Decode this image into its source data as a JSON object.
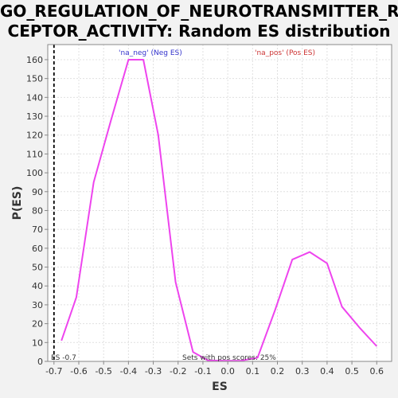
{
  "chart_data": {
    "type": "line",
    "title": "GO_REGULATION_OF_NEUROTRANSMITTER_RECEPTOR_ACTIVITY: Random ES distribution",
    "title_lines": [
      "GO_REGULATION_OF_NEUROTRANSMITTER_RE",
      "CEPTOR_ACTIVITY: Random ES distribution"
    ],
    "xlabel": "ES",
    "ylabel": "P(ES)",
    "xlim": [
      -0.725,
      0.66
    ],
    "ylim": [
      0,
      168
    ],
    "xticks": [
      -0.7,
      -0.6,
      -0.5,
      -0.4,
      -0.3,
      -0.2,
      -0.1,
      0.0,
      0.1,
      0.2,
      0.3,
      0.4,
      0.5,
      0.6
    ],
    "xtick_labels": [
      "-0.7",
      "-0.6",
      "-0.5",
      "-0.4",
      "-0.3",
      "-0.2",
      "-0.1",
      "0.0",
      "0.1",
      "0.2",
      "0.3",
      "0.4",
      "0.5",
      "0.6"
    ],
    "yticks": [
      0,
      10,
      20,
      30,
      40,
      50,
      60,
      70,
      80,
      90,
      100,
      110,
      120,
      130,
      140,
      150,
      160
    ],
    "ytick_labels": [
      "0",
      "10",
      "20",
      "30",
      "40",
      "50",
      "60",
      "70",
      "80",
      "90",
      "100",
      "110",
      "120",
      "130",
      "140",
      "150",
      "160"
    ],
    "grid": true,
    "series": [
      {
        "color": "#ee44ee",
        "x": [
          -0.67,
          -0.61,
          -0.54,
          -0.47,
          -0.4,
          -0.34,
          -0.28,
          -0.21,
          -0.14,
          -0.08,
          -0.01,
          0.05,
          0.12,
          0.19,
          0.26,
          0.33,
          0.4,
          0.46,
          0.53,
          0.6
        ],
        "y": [
          11,
          34,
          95,
          128,
          160,
          160,
          120,
          42,
          5,
          0.5,
          0.3,
          0.3,
          2,
          27,
          54,
          58,
          52,
          29,
          18,
          8
        ]
      }
    ],
    "vline": {
      "x": -0.7,
      "label": "ES -0.7"
    },
    "legend": [
      {
        "label": "'na_neg' (Neg ES)",
        "color": "#3333cc"
      },
      {
        "label": "'na_pos' (Pos ES)",
        "color": "#cc3333"
      }
    ],
    "annotation": "Sets with pos scores: 25%"
  }
}
